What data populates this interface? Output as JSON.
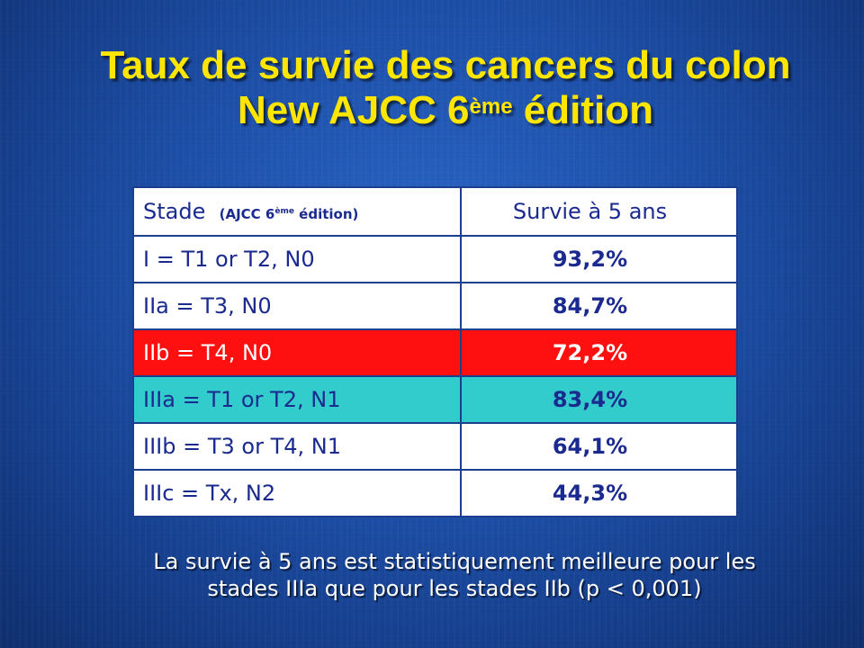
{
  "slide": {
    "title_line1": "Taux de survie des cancers du colon",
    "title_line2_main": "New AJCC 6",
    "title_line2_sup": "ème",
    "title_line2_end": " édition"
  },
  "table": {
    "header": {
      "stade": "Stade",
      "stade_note_open": "(AJCC 6",
      "stade_note_sup": "ème",
      "stade_note_close": " édition)",
      "survie": "Survie à 5 ans"
    },
    "rows": [
      {
        "stade": "I = T1 or T2, N0",
        "survie": "93,2%"
      },
      {
        "stade": "IIa = T3, N0",
        "survie": "84,7%"
      },
      {
        "stade": "IIb = T4, N0",
        "survie": "72,2%"
      },
      {
        "stade": "IIIa = T1 or T2, N1",
        "survie": "83,4%"
      },
      {
        "stade": "IIIb = T3 or T4, N1",
        "survie": "64,1%"
      },
      {
        "stade": "IIIc = Tx, N2",
        "survie": "44,3%"
      }
    ],
    "highlight_colors": {
      "IIb": "#ff1010",
      "IIIa": "#33cccc"
    }
  },
  "footnote": {
    "line1": "La survie à 5 ans est statistiquement meilleure pour les",
    "line2": "stades IIIa que pour les stades IIb (p < 0,001)"
  }
}
